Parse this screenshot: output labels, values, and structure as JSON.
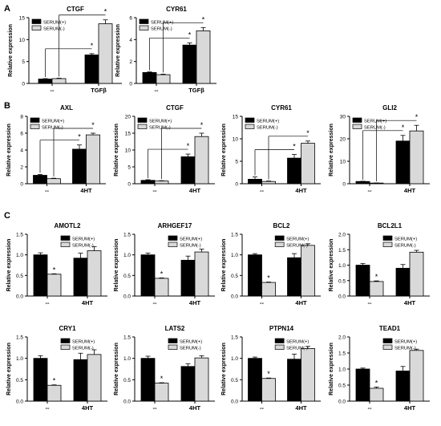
{
  "panel_letters": [
    "A",
    "B",
    "C"
  ],
  "legend_labels": [
    "SERUM(+)",
    "SERUM(-)"
  ],
  "ylabel": "Relative expression",
  "colors": {
    "serum_plus": "#000000",
    "serum_minus": "#d9d9d9",
    "axis": "#000000"
  },
  "chart_data": [
    {
      "panel": "A",
      "type": "bar",
      "title": "CTGF",
      "categories": [
        "--",
        "TGFβ"
      ],
      "ylim": [
        0,
        15
      ],
      "yticks": [
        0,
        5,
        10,
        15
      ],
      "series": [
        {
          "name": "SERUM(+)",
          "values": [
            1.0,
            6.5
          ],
          "errors": [
            0.1,
            0.3
          ]
        },
        {
          "name": "SERUM(-)",
          "values": [
            1.1,
            13.6
          ],
          "errors": [
            0.1,
            0.9
          ]
        }
      ],
      "significance": [
        {
          "category": "TGFβ",
          "bar": "SERUM(+)",
          "marker": "*",
          "bracket": true
        },
        {
          "category": "TGFβ",
          "bar": "SERUM(-)",
          "marker": "*",
          "bracket": true
        }
      ],
      "legend": "top-left"
    },
    {
      "panel": "A",
      "type": "bar",
      "title": "CYR61",
      "categories": [
        "--",
        "TGFβ"
      ],
      "ylim": [
        0,
        6
      ],
      "yticks": [
        0,
        2,
        4,
        6
      ],
      "series": [
        {
          "name": "SERUM(+)",
          "values": [
            1.0,
            3.5
          ],
          "errors": [
            0.05,
            0.2
          ]
        },
        {
          "name": "SERUM(-)",
          "values": [
            0.8,
            4.8
          ],
          "errors": [
            0.05,
            0.3
          ]
        }
      ],
      "significance": [
        {
          "category": "TGFβ",
          "bar": "SERUM(+)",
          "marker": "*",
          "bracket": true
        },
        {
          "category": "TGFβ",
          "bar": "SERUM(-)",
          "marker": "*",
          "bracket": true
        }
      ],
      "legend": "top-left"
    },
    {
      "panel": "B",
      "type": "bar",
      "title": "AXL",
      "categories": [
        "--",
        "4HT"
      ],
      "ylim": [
        0,
        8
      ],
      "yticks": [
        0,
        2,
        4,
        6,
        8
      ],
      "series": [
        {
          "name": "SERUM(+)",
          "values": [
            1.0,
            4.1
          ],
          "errors": [
            0.1,
            0.5
          ]
        },
        {
          "name": "SERUM(-)",
          "values": [
            0.6,
            5.8
          ],
          "errors": [
            0.05,
            0.2
          ]
        }
      ],
      "significance": [
        {
          "category": "4HT",
          "bar": "SERUM(+)",
          "marker": "*",
          "bracket": true
        },
        {
          "category": "4HT",
          "bar": "SERUM(-)",
          "marker": "*",
          "bracket": true
        }
      ],
      "legend": "top-left"
    },
    {
      "panel": "B",
      "type": "bar",
      "title": "CTGF",
      "categories": [
        "--",
        "4HT"
      ],
      "ylim": [
        0,
        20
      ],
      "yticks": [
        0,
        5,
        10,
        15,
        20
      ],
      "series": [
        {
          "name": "SERUM(+)",
          "values": [
            1.0,
            8.0
          ],
          "errors": [
            0.2,
            0.8
          ]
        },
        {
          "name": "SERUM(-)",
          "values": [
            0.8,
            14.0
          ],
          "errors": [
            0.1,
            1.0
          ]
        }
      ],
      "significance": [
        {
          "category": "4HT",
          "bar": "SERUM(+)",
          "marker": "*",
          "bracket": true
        },
        {
          "category": "4HT",
          "bar": "SERUM(-)",
          "marker": "*",
          "bracket": true
        }
      ],
      "legend": "top-left"
    },
    {
      "panel": "B",
      "type": "bar",
      "title": "CYR61",
      "categories": [
        "--",
        "4HT"
      ],
      "ylim": [
        0,
        15
      ],
      "yticks": [
        0,
        5,
        10,
        15
      ],
      "series": [
        {
          "name": "SERUM(+)",
          "values": [
            1.0,
            5.7
          ],
          "errors": [
            0.5,
            0.8
          ]
        },
        {
          "name": "SERUM(-)",
          "values": [
            0.5,
            9.0
          ],
          "errors": [
            0.1,
            0.5
          ]
        }
      ],
      "significance": [
        {
          "category": "4HT",
          "bar": "SERUM(+)",
          "marker": "*",
          "bracket": true
        },
        {
          "category": "4HT",
          "bar": "SERUM(-)",
          "marker": "*",
          "bracket": true
        }
      ],
      "legend": "top-left"
    },
    {
      "panel": "B",
      "type": "bar",
      "title": "GLI2",
      "categories": [
        "--",
        "4HT"
      ],
      "ylim": [
        0,
        30
      ],
      "yticks": [
        0,
        10,
        20,
        30
      ],
      "series": [
        {
          "name": "SERUM(+)",
          "values": [
            1.0,
            19.0
          ],
          "errors": [
            0.1,
            2.5
          ]
        },
        {
          "name": "SERUM(-)",
          "values": [
            0.3,
            23.5
          ],
          "errors": [
            0.05,
            2.5
          ]
        }
      ],
      "significance": [
        {
          "category": "4HT",
          "bar": "SERUM(+)",
          "marker": "*",
          "bracket": true
        },
        {
          "category": "4HT",
          "bar": "SERUM(-)",
          "marker": "*",
          "bracket": true
        }
      ],
      "legend": "top-left"
    },
    {
      "panel": "C",
      "type": "bar",
      "title": "AMOTL2",
      "categories": [
        "--",
        "4HT"
      ],
      "ylim": [
        0,
        1.5
      ],
      "yticks": [
        0.0,
        0.5,
        1.0,
        1.5
      ],
      "series": [
        {
          "name": "SERUM(+)",
          "values": [
            1.0,
            0.92
          ],
          "errors": [
            0.05,
            0.12
          ]
        },
        {
          "name": "SERUM(-)",
          "values": [
            0.53,
            1.1
          ],
          "errors": [
            0.01,
            0.1
          ]
        }
      ],
      "significance": [
        {
          "category": "--",
          "bar": "SERUM(-)",
          "marker": "*",
          "bracket": false
        }
      ],
      "legend": "top-right"
    },
    {
      "panel": "C",
      "type": "bar",
      "title": "ARHGEF17",
      "categories": [
        "--",
        "4HT"
      ],
      "ylim": [
        0,
        1.5
      ],
      "yticks": [
        0.0,
        0.5,
        1.0,
        1.5
      ],
      "series": [
        {
          "name": "SERUM(+)",
          "values": [
            1.0,
            0.87
          ],
          "errors": [
            0.04,
            0.1
          ]
        },
        {
          "name": "SERUM(-)",
          "values": [
            0.43,
            1.07
          ],
          "errors": [
            0.01,
            0.07
          ]
        }
      ],
      "significance": [
        {
          "category": "--",
          "bar": "SERUM(-)",
          "marker": "*",
          "bracket": false
        }
      ],
      "legend": "top-right"
    },
    {
      "panel": "C",
      "type": "bar",
      "title": "BCL2",
      "categories": [
        "--",
        "4HT"
      ],
      "ylim": [
        0,
        1.5
      ],
      "yticks": [
        0.0,
        0.5,
        1.0,
        1.5
      ],
      "series": [
        {
          "name": "SERUM(+)",
          "values": [
            1.0,
            0.93
          ],
          "errors": [
            0.03,
            0.1
          ]
        },
        {
          "name": "SERUM(-)",
          "values": [
            0.33,
            1.23
          ],
          "errors": [
            0.01,
            0.04
          ]
        }
      ],
      "significance": [
        {
          "category": "--",
          "bar": "SERUM(-)",
          "marker": "*",
          "bracket": false
        }
      ],
      "legend": "top-right"
    },
    {
      "panel": "C",
      "type": "bar",
      "title": "BCL2L1",
      "categories": [
        "--",
        "4HT"
      ],
      "ylim": [
        0,
        2.0
      ],
      "yticks": [
        0.0,
        0.5,
        1.0,
        1.5,
        2.0
      ],
      "series": [
        {
          "name": "SERUM(+)",
          "values": [
            1.0,
            0.9
          ],
          "errors": [
            0.05,
            0.12
          ]
        },
        {
          "name": "SERUM(-)",
          "values": [
            0.47,
            1.42
          ],
          "errors": [
            0.02,
            0.06
          ]
        }
      ],
      "significance": [
        {
          "category": "--",
          "bar": "SERUM(-)",
          "marker": "*",
          "bracket": false
        }
      ],
      "legend": "top-right"
    },
    {
      "panel": "C",
      "type": "bar",
      "title": "CRY1",
      "categories": [
        "--",
        "4HT"
      ],
      "ylim": [
        0,
        1.5
      ],
      "yticks": [
        0.0,
        0.5,
        1.0,
        1.5
      ],
      "series": [
        {
          "name": "SERUM(+)",
          "values": [
            1.0,
            0.97
          ],
          "errors": [
            0.06,
            0.15
          ]
        },
        {
          "name": "SERUM(-)",
          "values": [
            0.37,
            1.09
          ],
          "errors": [
            0.01,
            0.11
          ]
        }
      ],
      "significance": [
        {
          "category": "--",
          "bar": "SERUM(-)",
          "marker": "*",
          "bracket": false
        }
      ],
      "legend": "top-right"
    },
    {
      "panel": "C",
      "type": "bar",
      "title": "LATS2",
      "categories": [
        "--",
        "4HT"
      ],
      "ylim": [
        0,
        1.5
      ],
      "yticks": [
        0.0,
        0.5,
        1.0,
        1.5
      ],
      "series": [
        {
          "name": "SERUM(+)",
          "values": [
            1.0,
            0.81
          ],
          "errors": [
            0.05,
            0.06
          ]
        },
        {
          "name": "SERUM(-)",
          "values": [
            0.42,
            1.01
          ],
          "errors": [
            0.01,
            0.05
          ]
        }
      ],
      "significance": [
        {
          "category": "--",
          "bar": "SERUM(-)",
          "marker": "*",
          "bracket": false
        }
      ],
      "legend": "top-right"
    },
    {
      "panel": "C",
      "type": "bar",
      "title": "PTPN14",
      "categories": [
        "--",
        "4HT"
      ],
      "ylim": [
        0,
        1.5
      ],
      "yticks": [
        0.0,
        0.5,
        1.0,
        1.5
      ],
      "series": [
        {
          "name": "SERUM(+)",
          "values": [
            1.0,
            0.98
          ],
          "errors": [
            0.03,
            0.12
          ]
        },
        {
          "name": "SERUM(-)",
          "values": [
            0.53,
            1.23
          ],
          "errors": [
            0.01,
            0.05
          ]
        }
      ],
      "significance": [
        {
          "category": "--",
          "bar": "SERUM(-)",
          "marker": "*",
          "bracket": false
        }
      ],
      "legend": "top-right"
    },
    {
      "panel": "C",
      "type": "bar",
      "title": "TEAD1",
      "categories": [
        "--",
        "4HT"
      ],
      "ylim": [
        0,
        2.0
      ],
      "yticks": [
        0.0,
        0.5,
        1.0,
        1.5,
        2.0
      ],
      "series": [
        {
          "name": "SERUM(+)",
          "values": [
            1.0,
            0.94
          ],
          "errors": [
            0.03,
            0.14
          ]
        },
        {
          "name": "SERUM(-)",
          "values": [
            0.4,
            1.58
          ],
          "errors": [
            0.04,
            0.04
          ]
        }
      ],
      "significance": [
        {
          "category": "--",
          "bar": "SERUM(-)",
          "marker": "*",
          "bracket": false
        }
      ],
      "legend": "top-right"
    }
  ]
}
